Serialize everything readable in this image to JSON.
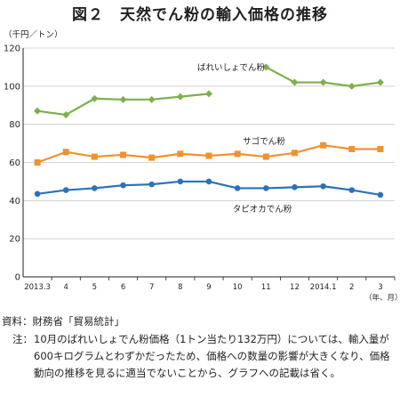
{
  "title": "図２　天然でん粉の輸入価格の推移",
  "chart_data": {
    "type": "line",
    "ylabel": "（千円／トン）",
    "xunit": "（年、月）",
    "ylim": [
      0,
      120
    ],
    "yticks": [
      0,
      20,
      40,
      60,
      80,
      100,
      120
    ],
    "categories": [
      "2013.3",
      "4",
      "5",
      "6",
      "7",
      "8",
      "9",
      "10",
      "11",
      "12",
      "2014.1",
      "2",
      "3"
    ],
    "grid": true,
    "series": [
      {
        "name": "ばれいしょでん粉",
        "color": "#7daf4c",
        "marker": "diamond",
        "values": [
          87,
          85,
          93.5,
          93,
          93,
          94.5,
          96,
          null,
          110,
          102,
          102,
          100,
          102
        ]
      },
      {
        "name": "サゴでん粉",
        "color": "#f0922e",
        "marker": "square",
        "values": [
          60,
          65.5,
          63,
          64,
          62.5,
          64.5,
          63.5,
          64.5,
          63,
          65,
          69,
          67,
          67
        ]
      },
      {
        "name": "タピオカでん粉",
        "color": "#2b73b6",
        "marker": "circle",
        "values": [
          43.5,
          45.5,
          46.5,
          48,
          48.5,
          50,
          50,
          46.5,
          46.5,
          47,
          47.5,
          45.5,
          43
        ]
      }
    ]
  },
  "notes": {
    "source_label": "資料：",
    "source_text": "財務省「貿易統計」",
    "note_label": "注：",
    "note_text": "10月のばれいしょでん粉価格（1トン当たり132万円）については、輸入量が600キログラムとわずかだったため、価格への数量の影響が大きくなり、価格動向の推移を見るに適当でないことから、グラフへの記載は省く。"
  }
}
